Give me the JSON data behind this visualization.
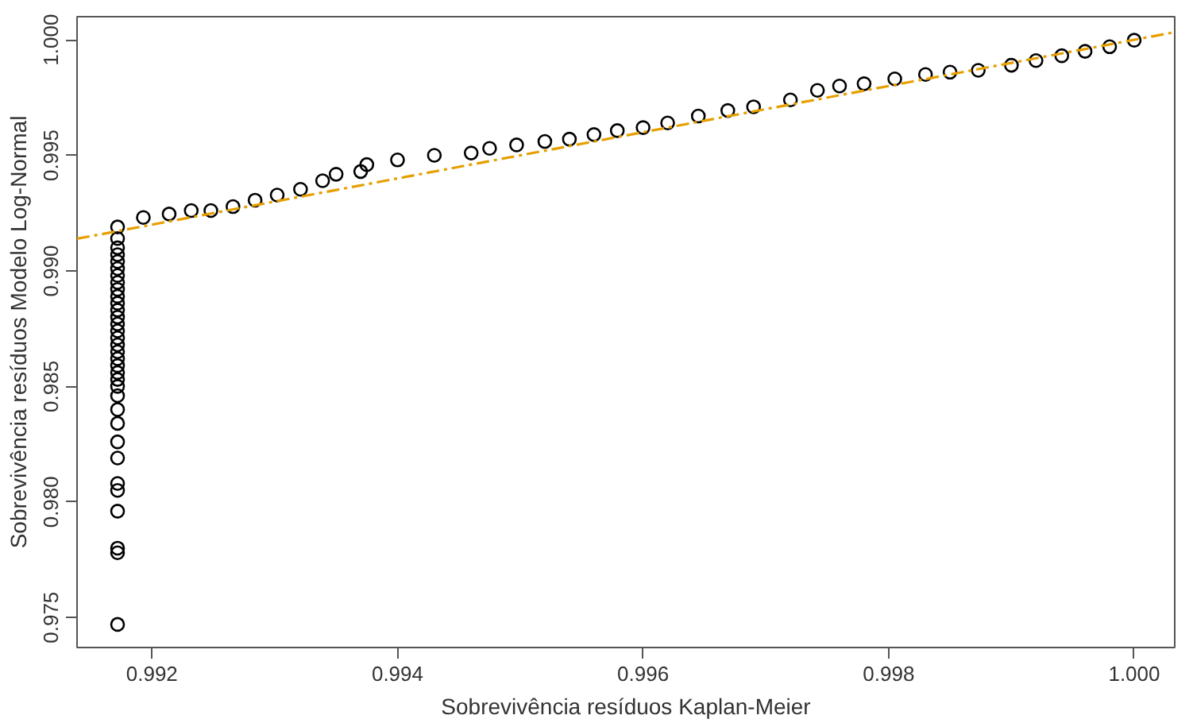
{
  "chart_data": {
    "type": "scatter",
    "xlabel": "Sobrevivência resíduos Kaplan-Meier",
    "ylabel": "Sobrevivência resíduos Modelo Log-Normal",
    "xlim": [
      0.99139,
      1.00033
    ],
    "ylim": [
      0.9737,
      1.001
    ],
    "xticks": [
      {
        "value": 0.992,
        "label": "0.992"
      },
      {
        "value": 0.994,
        "label": "0.994"
      },
      {
        "value": 0.996,
        "label": "0.996"
      },
      {
        "value": 0.998,
        "label": "0.998"
      },
      {
        "value": 1.0,
        "label": "1.000"
      }
    ],
    "yticks": [
      {
        "value": 0.975,
        "label": "0.975"
      },
      {
        "value": 0.98,
        "label": "0.980"
      },
      {
        "value": 0.985,
        "label": "0.985"
      },
      {
        "value": 0.99,
        "label": "0.990"
      },
      {
        "value": 0.995,
        "label": "0.995"
      },
      {
        "value": 1.0,
        "label": "1.000"
      }
    ],
    "grid": false,
    "series": [
      {
        "color": "#000000",
        "marker": "circle",
        "x": [
          0.99172,
          0.99172,
          0.99172,
          0.99172,
          0.99172,
          0.99172,
          0.99172,
          0.99172,
          0.99172,
          0.99172,
          0.99172,
          0.99172,
          0.99172,
          0.99172,
          0.99172,
          0.99172,
          0.99172,
          0.99172,
          0.99172,
          0.99172,
          0.99172,
          0.99172,
          0.99172,
          0.99172,
          0.99172,
          0.99172,
          0.99172,
          0.99172,
          0.99172,
          0.99172,
          0.99172,
          0.99172,
          0.99172,
          0.99172,
          0.99193,
          0.99214,
          0.99232,
          0.99248,
          0.99266,
          0.99284,
          0.99302,
          0.99321,
          0.99339,
          0.9935,
          0.9937,
          0.99375,
          0.994,
          0.9943,
          0.9946,
          0.99475,
          0.99497,
          0.9952,
          0.9954,
          0.9956,
          0.99579,
          0.996,
          0.9962,
          0.99645,
          0.99669,
          0.9969,
          0.9972,
          0.99742,
          0.9976,
          0.9978,
          0.99805,
          0.9983,
          0.9985,
          0.99873,
          0.999,
          0.9992,
          0.99941,
          0.9996,
          0.9998,
          1.0
        ],
        "values": [
          0.9747,
          0.9778,
          0.978,
          0.9796,
          0.9805,
          0.9808,
          0.9819,
          0.9826,
          0.9834,
          0.984,
          0.9846,
          0.985,
          0.9853,
          0.9856,
          0.9859,
          0.9862,
          0.9865,
          0.9868,
          0.9871,
          0.9874,
          0.9877,
          0.988,
          0.9883,
          0.9886,
          0.9889,
          0.9892,
          0.9895,
          0.9898,
          0.9901,
          0.9904,
          0.9907,
          0.991,
          0.9914,
          0.9919,
          0.99231,
          0.99246,
          0.99261,
          0.99261,
          0.99278,
          0.99306,
          0.99328,
          0.99353,
          0.9939,
          0.99418,
          0.9943,
          0.9946,
          0.9948,
          0.995,
          0.9951,
          0.9953,
          0.99545,
          0.9956,
          0.9957,
          0.9959,
          0.99607,
          0.9962,
          0.9964,
          0.9967,
          0.99694,
          0.9971,
          0.9974,
          0.99781,
          0.998,
          0.9981,
          0.99831,
          0.9985,
          0.9986,
          0.99868,
          0.9989,
          0.9991,
          0.99931,
          0.9995,
          0.9997,
          0.99998
        ]
      },
      {
        "type": "line",
        "color": "#e69f00",
        "line_style": "dashed",
        "x": [
          0.99139,
          1.00033
        ],
        "values": [
          0.99139,
          1.00033
        ]
      }
    ]
  }
}
